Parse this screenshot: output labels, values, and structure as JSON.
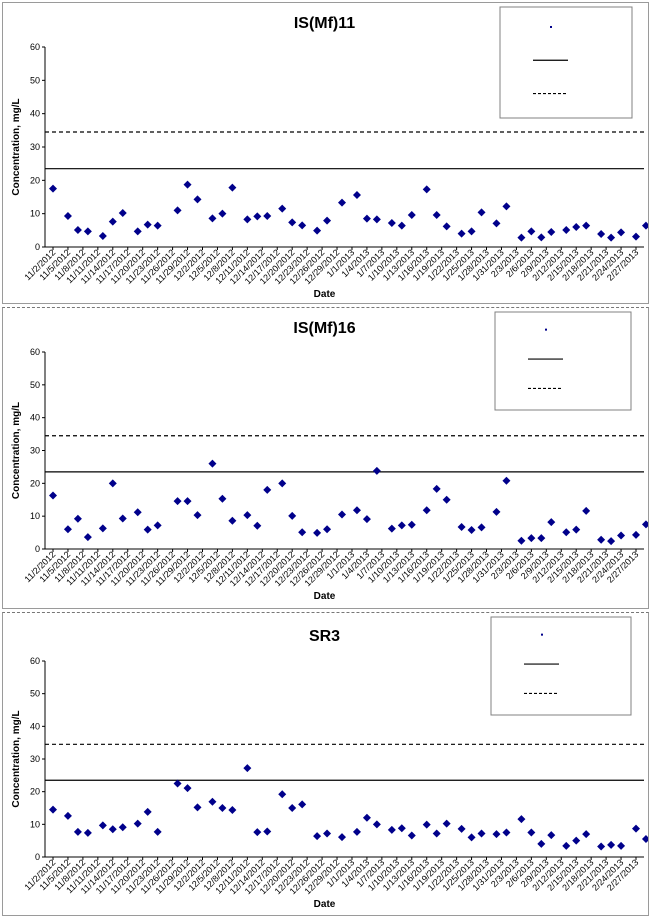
{
  "chart_data": [
    {
      "type": "scatter",
      "title": "IS(Mf)11",
      "xlabel": "Date",
      "ylabel": "Concentration, mg/L",
      "ylim": [
        0,
        60
      ],
      "yticks": [
        "0",
        "10",
        "20",
        "30",
        "40",
        "50",
        "60"
      ],
      "x_tick_labels": [
        "11/2/2012",
        "11/5/2012",
        "11/8/2012",
        "11/11/2012",
        "11/14/2012",
        "11/17/2012",
        "11/20/2012",
        "11/23/2012",
        "11/26/2012",
        "11/29/2012",
        "12/2/2012",
        "12/5/2012",
        "12/8/2012",
        "12/11/2012",
        "12/14/2012",
        "12/17/2012",
        "12/20/2012",
        "12/23/2012",
        "12/26/2012",
        "12/29/2012",
        "1/1/2013",
        "1/4/2013",
        "1/7/2013",
        "1/10/2013",
        "1/13/2013",
        "1/16/2013",
        "1/19/2013",
        "1/22/2013",
        "1/25/2013",
        "1/28/2013",
        "1/31/2013",
        "2/3/2013",
        "2/6/2013",
        "2/9/2013",
        "2/12/2013",
        "2/15/2013",
        "2/18/2013",
        "2/21/2013",
        "2/24/2013",
        "2/27/2013"
      ],
      "x_range": [
        "11/2/2012",
        "2/27/2013"
      ],
      "grid": false,
      "legend_position": "top-right",
      "reference_lines": [
        {
          "value": 23.5,
          "style": "solid"
        },
        {
          "value": 34.5,
          "style": "dashed"
        }
      ],
      "points": [
        {
          "x": "11/2/2012",
          "y": 17.5
        },
        {
          "x": "11/5/2012",
          "y": 9.3
        },
        {
          "x": "11/7/2012",
          "y": 5.1
        },
        {
          "x": "11/9/2012",
          "y": 4.7
        },
        {
          "x": "11/12/2012",
          "y": 3.3
        },
        {
          "x": "11/14/2012",
          "y": 7.6
        },
        {
          "x": "11/16/2012",
          "y": 10.2
        },
        {
          "x": "11/19/2012",
          "y": 4.7
        },
        {
          "x": "11/21/2012",
          "y": 6.7
        },
        {
          "x": "11/23/2012",
          "y": 6.4
        },
        {
          "x": "11/27/2012",
          "y": 11.0
        },
        {
          "x": "11/29/2012",
          "y": 18.7
        },
        {
          "x": "12/1/2012",
          "y": 14.3
        },
        {
          "x": "12/4/2012",
          "y": 8.6
        },
        {
          "x": "12/6/2012",
          "y": 10.0
        },
        {
          "x": "12/8/2012",
          "y": 17.8
        },
        {
          "x": "12/11/2012",
          "y": 8.3
        },
        {
          "x": "12/13/2012",
          "y": 9.2
        },
        {
          "x": "12/15/2012",
          "y": 9.3
        },
        {
          "x": "12/18/2012",
          "y": 11.5
        },
        {
          "x": "12/20/2012",
          "y": 7.4
        },
        {
          "x": "12/22/2012",
          "y": 6.5
        },
        {
          "x": "12/25/2012",
          "y": 4.9
        },
        {
          "x": "12/27/2012",
          "y": 7.9
        },
        {
          "x": "12/30/2012",
          "y": 13.3
        },
        {
          "x": "1/2/2013",
          "y": 15.6
        },
        {
          "x": "1/4/2013",
          "y": 8.5
        },
        {
          "x": "1/6/2013",
          "y": 8.3
        },
        {
          "x": "1/9/2013",
          "y": 7.2
        },
        {
          "x": "1/11/2013",
          "y": 6.4
        },
        {
          "x": "1/13/2013",
          "y": 9.6
        },
        {
          "x": "1/16/2013",
          "y": 17.3
        },
        {
          "x": "1/18/2013",
          "y": 9.6
        },
        {
          "x": "1/20/2013",
          "y": 6.2
        },
        {
          "x": "1/23/2013",
          "y": 4.0
        },
        {
          "x": "1/25/2013",
          "y": 4.7
        },
        {
          "x": "1/27/2013",
          "y": 10.4
        },
        {
          "x": "1/30/2013",
          "y": 7.1
        },
        {
          "x": "2/1/2013",
          "y": 12.2
        },
        {
          "x": "2/4/2013",
          "y": 2.8
        },
        {
          "x": "2/6/2013",
          "y": 4.7
        },
        {
          "x": "2/8/2013",
          "y": 2.9
        },
        {
          "x": "2/10/2013",
          "y": 4.5
        },
        {
          "x": "2/13/2013",
          "y": 5.1
        },
        {
          "x": "2/15/2013",
          "y": 6.0
        },
        {
          "x": "2/17/2013",
          "y": 6.4
        },
        {
          "x": "2/20/2013",
          "y": 3.9
        },
        {
          "x": "2/22/2013",
          "y": 2.8
        },
        {
          "x": "2/24/2013",
          "y": 4.4
        },
        {
          "x": "2/27/2013",
          "y": 3.1
        },
        {
          "x": "3/1/2013",
          "y": 6.4
        }
      ]
    },
    {
      "type": "scatter",
      "title": "IS(Mf)16",
      "xlabel": "Date",
      "ylabel": "Concentration, mg/L",
      "ylim": [
        0,
        60
      ],
      "yticks": [
        "0",
        "10",
        "20",
        "30",
        "40",
        "50",
        "60"
      ],
      "x_tick_labels": [
        "11/2/2012",
        "11/5/2012",
        "11/8/2012",
        "11/11/2012",
        "11/14/2012",
        "11/17/2012",
        "11/20/2012",
        "11/23/2012",
        "11/26/2012",
        "11/29/2012",
        "12/2/2012",
        "12/5/2012",
        "12/8/2012",
        "12/11/2012",
        "12/14/2012",
        "12/17/2012",
        "12/20/2012",
        "12/23/2012",
        "12/26/2012",
        "12/29/2012",
        "1/1/2013",
        "1/4/2013",
        "1/7/2013",
        "1/10/2013",
        "1/13/2013",
        "1/16/2013",
        "1/19/2013",
        "1/22/2013",
        "1/25/2013",
        "1/28/2013",
        "1/31/2013",
        "2/3/2013",
        "2/6/2013",
        "2/9/2013",
        "2/12/2013",
        "2/15/2013",
        "2/18/2013",
        "2/21/2013",
        "2/24/2013",
        "2/27/2013"
      ],
      "x_range": [
        "11/2/2012",
        "2/27/2013"
      ],
      "grid": false,
      "legend_position": "top-right",
      "reference_lines": [
        {
          "value": 23.5,
          "style": "solid"
        },
        {
          "value": 34.5,
          "style": "dashed"
        }
      ],
      "points": [
        {
          "x": "11/2/2012",
          "y": 16.3
        },
        {
          "x": "11/5/2012",
          "y": 6.0
        },
        {
          "x": "11/7/2012",
          "y": 9.2
        },
        {
          "x": "11/9/2012",
          "y": 3.6
        },
        {
          "x": "11/12/2012",
          "y": 6.3
        },
        {
          "x": "11/14/2012",
          "y": 20.0
        },
        {
          "x": "11/16/2012",
          "y": 9.3
        },
        {
          "x": "11/19/2012",
          "y": 11.2
        },
        {
          "x": "11/21/2012",
          "y": 5.9
        },
        {
          "x": "11/23/2012",
          "y": 7.2
        },
        {
          "x": "11/27/2012",
          "y": 14.6
        },
        {
          "x": "11/29/2012",
          "y": 14.6
        },
        {
          "x": "12/1/2012",
          "y": 10.3
        },
        {
          "x": "12/4/2012",
          "y": 26.0
        },
        {
          "x": "12/6/2012",
          "y": 15.3
        },
        {
          "x": "12/8/2012",
          "y": 8.6
        },
        {
          "x": "12/11/2012",
          "y": 10.3
        },
        {
          "x": "12/13/2012",
          "y": 7.1
        },
        {
          "x": "12/15/2012",
          "y": 18.0
        },
        {
          "x": "12/18/2012",
          "y": 20.0
        },
        {
          "x": "12/20/2012",
          "y": 10.1
        },
        {
          "x": "12/22/2012",
          "y": 5.1
        },
        {
          "x": "12/25/2012",
          "y": 4.9
        },
        {
          "x": "12/27/2012",
          "y": 6.0
        },
        {
          "x": "12/30/2012",
          "y": 10.5
        },
        {
          "x": "1/2/2013",
          "y": 11.8
        },
        {
          "x": "1/4/2013",
          "y": 9.1
        },
        {
          "x": "1/6/2013",
          "y": 23.8
        },
        {
          "x": "1/9/2013",
          "y": 6.2
        },
        {
          "x": "1/11/2013",
          "y": 7.2
        },
        {
          "x": "1/13/2013",
          "y": 7.4
        },
        {
          "x": "1/16/2013",
          "y": 11.8
        },
        {
          "x": "1/18/2013",
          "y": 18.3
        },
        {
          "x": "1/20/2013",
          "y": 15.0
        },
        {
          "x": "1/23/2013",
          "y": 6.7
        },
        {
          "x": "1/25/2013",
          "y": 5.8
        },
        {
          "x": "1/27/2013",
          "y": 6.6
        },
        {
          "x": "1/30/2013",
          "y": 11.3
        },
        {
          "x": "2/1/2013",
          "y": 20.8
        },
        {
          "x": "2/4/2013",
          "y": 2.5
        },
        {
          "x": "2/6/2013",
          "y": 3.3
        },
        {
          "x": "2/8/2013",
          "y": 3.3
        },
        {
          "x": "2/10/2013",
          "y": 8.2
        },
        {
          "x": "2/13/2013",
          "y": 5.1
        },
        {
          "x": "2/15/2013",
          "y": 5.9
        },
        {
          "x": "2/17/2013",
          "y": 11.6
        },
        {
          "x": "2/20/2013",
          "y": 2.8
        },
        {
          "x": "2/22/2013",
          "y": 2.4
        },
        {
          "x": "2/24/2013",
          "y": 4.1
        },
        {
          "x": "2/27/2013",
          "y": 4.3
        },
        {
          "x": "3/1/2013",
          "y": 7.5
        }
      ]
    },
    {
      "type": "scatter",
      "title": "SR3",
      "xlabel": "Date",
      "ylabel": "Concentration, mg/L",
      "ylim": [
        0,
        60
      ],
      "yticks": [
        "0",
        "10",
        "20",
        "30",
        "40",
        "50",
        "60"
      ],
      "x_tick_labels": [
        "11/2/2012",
        "11/5/2012",
        "11/8/2012",
        "11/11/2012",
        "11/14/2012",
        "11/17/2012",
        "11/20/2012",
        "11/23/2012",
        "11/26/2012",
        "11/29/2012",
        "12/2/2012",
        "12/5/2012",
        "12/8/2012",
        "12/11/2012",
        "12/14/2012",
        "12/17/2012",
        "12/20/2012",
        "12/23/2012",
        "12/26/2012",
        "12/29/2012",
        "1/1/2013",
        "1/4/2013",
        "1/7/2013",
        "1/10/2013",
        "1/13/2013",
        "1/16/2013",
        "1/19/2013",
        "1/22/2013",
        "1/25/2013",
        "1/28/2013",
        "1/31/2013",
        "2/3/2013",
        "2/6/2013",
        "2/9/2013",
        "2/12/2013",
        "2/15/2013",
        "2/18/2013",
        "2/21/2013",
        "2/24/2013",
        "2/27/2013"
      ],
      "x_range": [
        "11/2/2012",
        "2/27/2013"
      ],
      "grid": false,
      "legend_position": "top-right",
      "reference_lines": [
        {
          "value": 23.5,
          "style": "solid"
        },
        {
          "value": 34.5,
          "style": "dashed"
        }
      ],
      "points": [
        {
          "x": "11/2/2012",
          "y": 14.5
        },
        {
          "x": "11/5/2012",
          "y": 12.6
        },
        {
          "x": "11/7/2012",
          "y": 7.7
        },
        {
          "x": "11/9/2012",
          "y": 7.4
        },
        {
          "x": "11/12/2012",
          "y": 9.7
        },
        {
          "x": "11/14/2012",
          "y": 8.5
        },
        {
          "x": "11/16/2012",
          "y": 9.1
        },
        {
          "x": "11/19/2012",
          "y": 10.2
        },
        {
          "x": "11/21/2012",
          "y": 13.8
        },
        {
          "x": "11/23/2012",
          "y": 7.7
        },
        {
          "x": "11/27/2012",
          "y": 22.5
        },
        {
          "x": "11/29/2012",
          "y": 21.1
        },
        {
          "x": "12/1/2012",
          "y": 15.2
        },
        {
          "x": "12/4/2012",
          "y": 16.9
        },
        {
          "x": "12/6/2012",
          "y": 15.0
        },
        {
          "x": "12/8/2012",
          "y": 14.4
        },
        {
          "x": "12/11/2012",
          "y": 27.2
        },
        {
          "x": "12/13/2012",
          "y": 7.6
        },
        {
          "x": "12/15/2012",
          "y": 7.8
        },
        {
          "x": "12/18/2012",
          "y": 19.2
        },
        {
          "x": "12/20/2012",
          "y": 15.0
        },
        {
          "x": "12/22/2012",
          "y": 16.1
        },
        {
          "x": "12/25/2012",
          "y": 6.4
        },
        {
          "x": "12/27/2012",
          "y": 7.2
        },
        {
          "x": "12/30/2012",
          "y": 6.1
        },
        {
          "x": "1/2/2013",
          "y": 7.7
        },
        {
          "x": "1/4/2013",
          "y": 12.0
        },
        {
          "x": "1/6/2013",
          "y": 10.0
        },
        {
          "x": "1/9/2013",
          "y": 8.3
        },
        {
          "x": "1/11/2013",
          "y": 8.8
        },
        {
          "x": "1/13/2013",
          "y": 6.6
        },
        {
          "x": "1/16/2013",
          "y": 9.9
        },
        {
          "x": "1/18/2013",
          "y": 7.2
        },
        {
          "x": "1/20/2013",
          "y": 10.2
        },
        {
          "x": "1/23/2013",
          "y": 8.6
        },
        {
          "x": "1/25/2013",
          "y": 6.0
        },
        {
          "x": "1/27/2013",
          "y": 7.2
        },
        {
          "x": "1/30/2013",
          "y": 7.0
        },
        {
          "x": "2/1/2013",
          "y": 7.5
        },
        {
          "x": "2/4/2013",
          "y": 11.6
        },
        {
          "x": "2/6/2013",
          "y": 7.5
        },
        {
          "x": "2/8/2013",
          "y": 4.0
        },
        {
          "x": "2/10/2013",
          "y": 6.7
        },
        {
          "x": "2/13/2013",
          "y": 3.4
        },
        {
          "x": "2/15/2013",
          "y": 5.0
        },
        {
          "x": "2/17/2013",
          "y": 7.0
        },
        {
          "x": "2/20/2013",
          "y": 3.2
        },
        {
          "x": "2/22/2013",
          "y": 3.7
        },
        {
          "x": "2/24/2013",
          "y": 3.4
        },
        {
          "x": "2/27/2013",
          "y": 8.7
        },
        {
          "x": "3/1/2013",
          "y": 5.5
        }
      ]
    }
  ],
  "colors": {
    "marker": "#00008b",
    "reference_line": "#000000",
    "frame": "#808080"
  }
}
